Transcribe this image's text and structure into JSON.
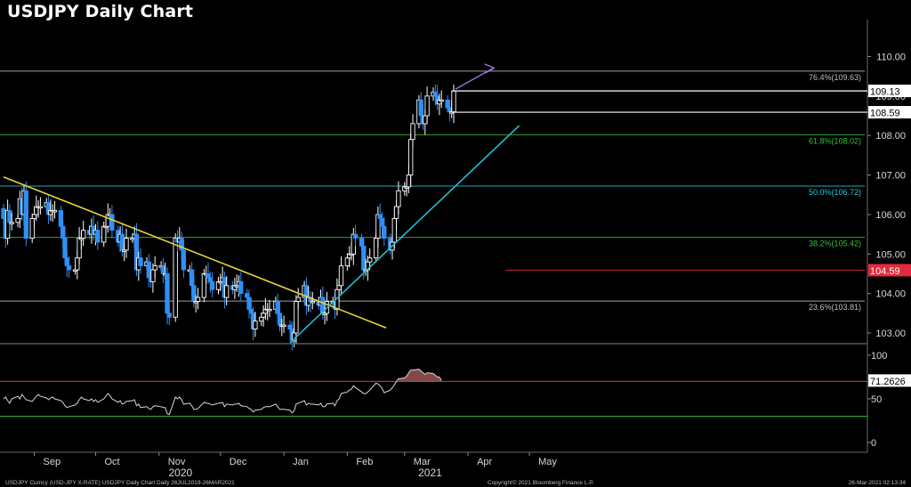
{
  "title": "USDJPY Daily Chart",
  "footer": {
    "left": "USDJPY Curncy (USD-JPY X-RATE) USDJPY Daily Chart  Daily 26JUL2019-26MAR2021",
    "center": "Copyright© 2021 Bloomberg Finance L.P.",
    "right": "26-Mar-2021 02:13:34"
  },
  "colors": {
    "background": "#000000",
    "candle_up": "#ffffff",
    "candle_down": "#2f8ff5",
    "down_trendline": "#e6d43a",
    "up_trendline": "#27b8cf",
    "arrow": "#a070d8",
    "rsi_line": "#d8d8d8",
    "rsi_overbought_fill": "#b06060"
  },
  "chart_data": [
    {
      "type": "candlestick",
      "title": "",
      "xlabel": "",
      "ylabel": "",
      "ylim": [
        102.7,
        110.6
      ],
      "yticks": [
        "110.00",
        "109.00",
        "108.00",
        "107.00",
        "106.00",
        "105.00",
        "104.00",
        "103.00"
      ],
      "x_month_labels": [
        "Sep",
        "Oct",
        "Nov",
        "Dec",
        "Jan",
        "Feb",
        "Mar",
        "Apr",
        "May"
      ],
      "x_year_labels": [
        "2020",
        "2021"
      ],
      "xlim": [
        "2020-08-17",
        "2021-05-31"
      ],
      "closes": [
        {
          "date": "2020-08-17",
          "close": 105.9
        },
        {
          "date": "2020-08-18",
          "close": 105.4
        },
        {
          "date": "2020-08-19",
          "close": 106.1
        },
        {
          "date": "2020-08-20",
          "close": 105.8
        },
        {
          "date": "2020-08-21",
          "close": 105.8
        },
        {
          "date": "2020-08-24",
          "close": 105.9
        },
        {
          "date": "2020-08-25",
          "close": 106.4
        },
        {
          "date": "2020-08-26",
          "close": 106.0
        },
        {
          "date": "2020-08-27",
          "close": 106.6
        },
        {
          "date": "2020-08-28",
          "close": 105.4
        },
        {
          "date": "2020-08-31",
          "close": 105.9
        },
        {
          "date": "2020-09-01",
          "close": 106.0
        },
        {
          "date": "2020-09-02",
          "close": 106.2
        },
        {
          "date": "2020-09-03",
          "close": 106.2
        },
        {
          "date": "2020-09-04",
          "close": 106.2
        },
        {
          "date": "2020-09-07",
          "close": 106.3
        },
        {
          "date": "2020-09-08",
          "close": 106.0
        },
        {
          "date": "2020-09-09",
          "close": 106.1
        },
        {
          "date": "2020-09-10",
          "close": 106.1
        },
        {
          "date": "2020-09-11",
          "close": 106.1
        },
        {
          "date": "2020-09-14",
          "close": 105.7
        },
        {
          "date": "2020-09-15",
          "close": 105.4
        },
        {
          "date": "2020-09-16",
          "close": 104.9
        },
        {
          "date": "2020-09-17",
          "close": 104.7
        },
        {
          "date": "2020-09-18",
          "close": 104.6
        },
        {
          "date": "2020-09-21",
          "close": 104.6
        },
        {
          "date": "2020-09-22",
          "close": 104.9
        },
        {
          "date": "2020-09-23",
          "close": 105.4
        },
        {
          "date": "2020-09-24",
          "close": 105.4
        },
        {
          "date": "2020-09-25",
          "close": 105.6
        },
        {
          "date": "2020-09-28",
          "close": 105.5
        },
        {
          "date": "2020-09-29",
          "close": 105.7
        },
        {
          "date": "2020-09-30",
          "close": 105.5
        },
        {
          "date": "2020-10-01",
          "close": 105.6
        },
        {
          "date": "2020-10-02",
          "close": 105.3
        },
        {
          "date": "2020-10-05",
          "close": 105.7
        },
        {
          "date": "2020-10-06",
          "close": 105.7
        },
        {
          "date": "2020-10-07",
          "close": 106.0
        },
        {
          "date": "2020-10-08",
          "close": 106.0
        },
        {
          "date": "2020-10-09",
          "close": 105.6
        },
        {
          "date": "2020-10-12",
          "close": 105.3
        },
        {
          "date": "2020-10-13",
          "close": 105.5
        },
        {
          "date": "2020-10-14",
          "close": 105.1
        },
        {
          "date": "2020-10-15",
          "close": 105.1
        },
        {
          "date": "2020-10-16",
          "close": 105.4
        },
        {
          "date": "2020-10-19",
          "close": 105.4
        },
        {
          "date": "2020-10-20",
          "close": 105.5
        },
        {
          "date": "2020-10-21",
          "close": 104.6
        },
        {
          "date": "2020-10-22",
          "close": 104.9
        },
        {
          "date": "2020-10-23",
          "close": 104.7
        },
        {
          "date": "2020-10-26",
          "close": 104.8
        },
        {
          "date": "2020-10-27",
          "close": 104.4
        },
        {
          "date": "2020-10-28",
          "close": 104.3
        },
        {
          "date": "2020-10-29",
          "close": 104.6
        },
        {
          "date": "2020-10-30",
          "close": 104.7
        },
        {
          "date": "2020-11-02",
          "close": 104.7
        },
        {
          "date": "2020-11-03",
          "close": 104.5
        },
        {
          "date": "2020-11-04",
          "close": 104.5
        },
        {
          "date": "2020-11-05",
          "close": 103.5
        },
        {
          "date": "2020-11-06",
          "close": 103.4
        },
        {
          "date": "2020-11-09",
          "close": 105.4
        },
        {
          "date": "2020-11-10",
          "close": 105.3
        },
        {
          "date": "2020-11-11",
          "close": 105.4
        },
        {
          "date": "2020-11-12",
          "close": 105.1
        },
        {
          "date": "2020-11-13",
          "close": 104.6
        },
        {
          "date": "2020-11-16",
          "close": 104.6
        },
        {
          "date": "2020-11-17",
          "close": 104.2
        },
        {
          "date": "2020-11-18",
          "close": 103.8
        },
        {
          "date": "2020-11-19",
          "close": 103.8
        },
        {
          "date": "2020-11-20",
          "close": 103.9
        },
        {
          "date": "2020-11-23",
          "close": 104.5
        },
        {
          "date": "2020-11-24",
          "close": 104.5
        },
        {
          "date": "2020-11-25",
          "close": 104.4
        },
        {
          "date": "2020-11-26",
          "close": 104.3
        },
        {
          "date": "2020-11-27",
          "close": 104.1
        },
        {
          "date": "2020-11-30",
          "close": 104.3
        },
        {
          "date": "2020-12-01",
          "close": 104.3
        },
        {
          "date": "2020-12-02",
          "close": 104.4
        },
        {
          "date": "2020-12-03",
          "close": 103.9
        },
        {
          "date": "2020-12-04",
          "close": 104.2
        },
        {
          "date": "2020-12-07",
          "close": 104.1
        },
        {
          "date": "2020-12-08",
          "close": 104.2
        },
        {
          "date": "2020-12-09",
          "close": 104.2
        },
        {
          "date": "2020-12-10",
          "close": 104.3
        },
        {
          "date": "2020-12-11",
          "close": 104.0
        },
        {
          "date": "2020-12-14",
          "close": 103.9
        },
        {
          "date": "2020-12-15",
          "close": 103.6
        },
        {
          "date": "2020-12-16",
          "close": 103.5
        },
        {
          "date": "2020-12-17",
          "close": 103.1
        },
        {
          "date": "2020-12-18",
          "close": 103.3
        },
        {
          "date": "2020-12-21",
          "close": 103.4
        },
        {
          "date": "2020-12-22",
          "close": 103.5
        },
        {
          "date": "2020-12-23",
          "close": 103.6
        },
        {
          "date": "2020-12-24",
          "close": 103.6
        },
        {
          "date": "2020-12-25",
          "close": 103.6
        },
        {
          "date": "2020-12-28",
          "close": 103.8
        },
        {
          "date": "2020-12-29",
          "close": 103.5
        },
        {
          "date": "2020-12-30",
          "close": 103.2
        },
        {
          "date": "2020-12-31",
          "close": 103.2
        },
        {
          "date": "2021-01-01",
          "close": 103.2
        },
        {
          "date": "2021-01-04",
          "close": 103.1
        },
        {
          "date": "2021-01-05",
          "close": 102.8
        },
        {
          "date": "2021-01-06",
          "close": 103.0
        },
        {
          "date": "2021-01-07",
          "close": 103.8
        },
        {
          "date": "2021-01-08",
          "close": 103.9
        },
        {
          "date": "2021-01-11",
          "close": 104.2
        },
        {
          "date": "2021-01-12",
          "close": 103.7
        },
        {
          "date": "2021-01-13",
          "close": 103.9
        },
        {
          "date": "2021-01-14",
          "close": 103.8
        },
        {
          "date": "2021-01-15",
          "close": 103.8
        },
        {
          "date": "2021-01-18",
          "close": 103.7
        },
        {
          "date": "2021-01-19",
          "close": 103.9
        },
        {
          "date": "2021-01-20",
          "close": 103.5
        },
        {
          "date": "2021-01-21",
          "close": 103.5
        },
        {
          "date": "2021-01-22",
          "close": 103.8
        },
        {
          "date": "2021-01-25",
          "close": 103.8
        },
        {
          "date": "2021-01-26",
          "close": 103.6
        },
        {
          "date": "2021-01-27",
          "close": 104.1
        },
        {
          "date": "2021-01-28",
          "close": 104.2
        },
        {
          "date": "2021-01-29",
          "close": 104.7
        },
        {
          "date": "2021-02-01",
          "close": 104.9
        },
        {
          "date": "2021-02-02",
          "close": 105.0
        },
        {
          "date": "2021-02-03",
          "close": 105.0
        },
        {
          "date": "2021-02-04",
          "close": 105.5
        },
        {
          "date": "2021-02-05",
          "close": 105.4
        },
        {
          "date": "2021-02-08",
          "close": 105.2
        },
        {
          "date": "2021-02-09",
          "close": 104.6
        },
        {
          "date": "2021-02-10",
          "close": 104.6
        },
        {
          "date": "2021-02-11",
          "close": 104.8
        },
        {
          "date": "2021-02-12",
          "close": 104.9
        },
        {
          "date": "2021-02-15",
          "close": 105.4
        },
        {
          "date": "2021-02-16",
          "close": 106.0
        },
        {
          "date": "2021-02-17",
          "close": 105.9
        },
        {
          "date": "2021-02-18",
          "close": 105.7
        },
        {
          "date": "2021-02-19",
          "close": 105.4
        },
        {
          "date": "2021-02-22",
          "close": 105.1
        },
        {
          "date": "2021-02-23",
          "close": 105.3
        },
        {
          "date": "2021-02-24",
          "close": 105.9
        },
        {
          "date": "2021-02-25",
          "close": 106.2
        },
        {
          "date": "2021-02-26",
          "close": 106.6
        },
        {
          "date": "2021-03-01",
          "close": 106.7
        },
        {
          "date": "2021-03-02",
          "close": 106.7
        },
        {
          "date": "2021-03-03",
          "close": 107.0
        },
        {
          "date": "2021-03-04",
          "close": 107.9
        },
        {
          "date": "2021-03-05",
          "close": 108.3
        },
        {
          "date": "2021-03-08",
          "close": 108.9
        },
        {
          "date": "2021-03-09",
          "close": 108.5
        },
        {
          "date": "2021-03-10",
          "close": 108.3
        },
        {
          "date": "2021-03-11",
          "close": 108.5
        },
        {
          "date": "2021-03-12",
          "close": 109.0
        },
        {
          "date": "2021-03-15",
          "close": 109.1
        },
        {
          "date": "2021-03-16",
          "close": 109.0
        },
        {
          "date": "2021-03-17",
          "close": 108.8
        },
        {
          "date": "2021-03-18",
          "close": 108.9
        },
        {
          "date": "2021-03-19",
          "close": 108.9
        },
        {
          "date": "2021-03-22",
          "close": 108.7
        },
        {
          "date": "2021-03-23",
          "close": 108.6
        },
        {
          "date": "2021-03-24",
          "close": 108.6
        },
        {
          "date": "2021-03-25",
          "close": 109.13
        }
      ],
      "horizontal_levels": [
        {
          "value": 109.63,
          "label": "76.4%(109.63)",
          "color": "#bfbfbf"
        },
        {
          "value": 108.02,
          "label": "61.8%(108.02)",
          "color": "#38c038"
        },
        {
          "value": 106.72,
          "label": "50.0%(106.72)",
          "color": "#2bc6d8"
        },
        {
          "value": 105.42,
          "label": "38.2%(105.42)",
          "color": "#38c038"
        },
        {
          "value": 103.81,
          "label": "23.6%(103.81)",
          "color": "#bfbfbf"
        },
        {
          "value": 104.59,
          "label": "",
          "color": "#e02c3c"
        }
      ],
      "price_labels": [
        {
          "value": 109.13,
          "text": "109.13",
          "bg": "#ffffff",
          "fg": "#000000"
        },
        {
          "value": 108.59,
          "text": "108.59",
          "bg": "#ffffff",
          "fg": "#000000"
        },
        {
          "value": 104.59,
          "text": "104.59",
          "bg": "#e02c3c",
          "fg": "#ffffff"
        }
      ],
      "trendlines": [
        {
          "name": "downtrend",
          "from": {
            "date": "2020-08-17",
            "value": 106.95
          },
          "to": {
            "date": "2021-02-20",
            "value": 103.13
          }
        },
        {
          "name": "uptrend",
          "from": {
            "date": "2021-01-04",
            "value": 102.75
          },
          "to": {
            "date": "2021-04-26",
            "value": 108.25
          }
        }
      ]
    },
    {
      "type": "line",
      "title": "",
      "ylim": [
        -5,
        105
      ],
      "yticks": [
        "100",
        "50",
        "0"
      ],
      "reference_level": 70,
      "last_value_label": "71.2626",
      "series": [
        {
          "values": [
            50,
            52,
            48,
            45,
            50,
            53,
            50,
            55,
            52,
            49,
            47,
            50,
            53,
            55,
            53,
            51,
            49,
            51,
            52,
            50,
            48,
            46,
            42,
            40,
            41,
            43,
            45,
            49,
            52,
            50,
            48,
            50,
            47,
            49,
            46,
            50,
            53,
            56,
            54,
            50,
            46,
            48,
            44,
            45,
            47,
            48,
            49,
            42,
            44,
            40,
            41,
            39,
            38,
            41,
            42,
            41,
            40,
            40,
            33,
            32,
            52,
            50,
            52,
            49,
            44,
            45,
            42,
            38,
            38,
            39,
            46,
            45,
            45,
            44,
            43,
            45,
            45,
            46,
            41,
            44,
            43,
            44,
            44,
            45,
            42,
            41,
            39,
            38,
            35,
            37,
            38,
            40,
            41,
            41,
            41,
            44,
            41,
            38,
            38,
            38,
            37,
            34,
            36,
            44,
            45,
            48,
            43,
            45,
            44,
            44,
            43,
            45,
            41,
            41,
            44,
            45,
            42,
            48,
            50,
            56,
            58,
            60,
            61,
            65,
            63,
            58,
            56,
            56,
            58,
            60,
            68,
            67,
            65,
            62,
            57,
            60,
            63,
            66,
            70,
            73,
            74,
            76,
            80,
            83,
            83,
            84,
            82,
            80,
            78,
            80,
            79,
            77,
            75,
            75,
            71
          ]
        }
      ]
    }
  ]
}
